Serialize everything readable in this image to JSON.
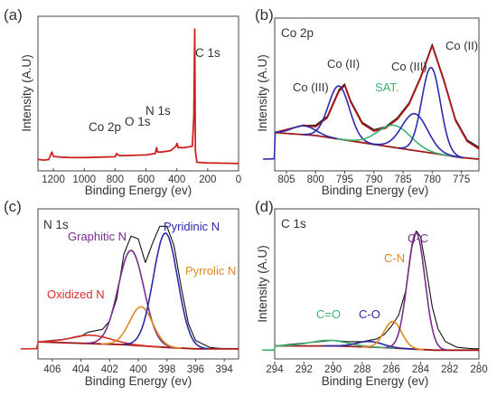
{
  "colors": {
    "data": "#111111",
    "fit": "#b01818",
    "background": "#a01a1a",
    "survey": "#cc2222",
    "co3": "#2b2bb0",
    "sat": "#3cb371",
    "nOx": "#d8312c",
    "graphitic": "#7b2d8e",
    "pyridinic": "#2a2aa8",
    "pyrrolic": "#e08a1e",
    "cc": "#7b2d8e",
    "co": "#2a2aa8",
    "cn": "#e08a1e",
    "ceo": "#3cb371"
  },
  "chart_data": [
    {
      "panel": "(a)",
      "type": "line",
      "title": "",
      "xlabel": "Binding Energy (ev)",
      "ylabel": "Intensity (A.U)",
      "xlim": [
        1300,
        0
      ],
      "ylim": [
        0,
        100
      ],
      "xticks": [
        "1200",
        "1000",
        "800",
        "600",
        "400",
        "200",
        "0"
      ],
      "annotations": [
        {
          "label": "C 1s",
          "x": 284
        },
        {
          "label": "N 1s",
          "x": 398
        },
        {
          "label": "O 1s",
          "x": 531
        },
        {
          "label": "Co 2p",
          "x": 780
        }
      ],
      "series": [
        {
          "x": [
            1300,
            1260,
            1230,
            1210,
            1200,
            1150,
            1100,
            1000,
            900,
            800,
            790,
            780,
            770,
            700,
            600,
            540,
            531,
            525,
            500,
            440,
            405,
            398,
            392,
            350,
            300,
            290,
            284,
            280,
            270,
            200,
            100,
            0
          ],
          "y": [
            6,
            5.5,
            6,
            11,
            8,
            7.5,
            7.3,
            7.2,
            7.5,
            7.8,
            10,
            9,
            8.5,
            8.7,
            9,
            10,
            14,
            11,
            11,
            12,
            15,
            17,
            14,
            14,
            15,
            35,
            95,
            12,
            4,
            3.6,
            3.4,
            3.2
          ]
        }
      ]
    },
    {
      "panel": "(b)",
      "type": "line",
      "title": "Co 2p",
      "xlabel": "Binding Energy (ev)",
      "ylabel": "Intensity (A.U)",
      "xlim": [
        807,
        772
      ],
      "ylim": [
        0,
        100
      ],
      "xticks": [
        "805",
        "800",
        "795",
        "790",
        "785",
        "780",
        "775"
      ],
      "annotations": [
        {
          "label": "Co (III)",
          "x": 802
        },
        {
          "label": "Co (II)",
          "x": 796
        },
        {
          "label": "SAT.",
          "x": 786
        },
        {
          "label": "Co (III)",
          "x": 783
        },
        {
          "label": "Co (II)",
          "x": 780
        }
      ],
      "series": [
        {
          "role": "raw",
          "x": [
            807,
            805,
            803,
            802,
            800,
            798,
            796,
            795,
            794,
            792,
            790,
            788,
            786,
            784,
            782,
            780,
            778,
            776,
            774,
            772
          ],
          "y": [
            26,
            28,
            30,
            31,
            31,
            37,
            55,
            59,
            48,
            33,
            28,
            30,
            36,
            46,
            64,
            86,
            62,
            35,
            21,
            16
          ]
        },
        {
          "role": "envelope",
          "x": [
            807,
            805,
            803,
            802,
            800,
            798,
            796,
            795,
            794,
            792,
            790,
            788,
            786,
            784,
            782,
            780,
            778,
            776,
            774,
            772
          ],
          "y": [
            26,
            28,
            30,
            31,
            30,
            36,
            54,
            58,
            47,
            32,
            27,
            29,
            35,
            45,
            63,
            85,
            61,
            34,
            20,
            15
          ]
        },
        {
          "role": "background",
          "x": [
            807,
            800,
            795,
            790,
            785,
            780,
            775,
            772
          ],
          "y": [
            26,
            24,
            21,
            18,
            15,
            12,
            9,
            8
          ]
        },
        {
          "role": "peak",
          "name": "Co (III)",
          "center": 802,
          "height": 6,
          "width": 2,
          "color": "co3"
        },
        {
          "role": "peak",
          "name": "Co (II)",
          "center": 796,
          "height": 36,
          "width": 1.8,
          "color": "co3"
        },
        {
          "role": "peak",
          "name": "SAT.",
          "center": 786.5,
          "height": 15,
          "width": 2.8,
          "color": "sat"
        },
        {
          "role": "peak",
          "name": "Co (III)",
          "center": 783,
          "height": 25,
          "width": 2.2,
          "color": "co3"
        },
        {
          "role": "peak",
          "name": "Co (II)",
          "center": 780.2,
          "height": 58,
          "width": 1.6,
          "color": "co3"
        }
      ]
    },
    {
      "panel": "(c)",
      "type": "line",
      "title": "N 1s",
      "xlabel": "Binding Energy (ev)",
      "ylabel": "",
      "xlim": [
        407,
        393
      ],
      "ylim": [
        0,
        100
      ],
      "xticks": [
        "406",
        "404",
        "402",
        "400",
        "398",
        "396",
        "394"
      ],
      "annotations": [
        {
          "label": "Oxidized N",
          "x": 403.5
        },
        {
          "label": "Graphitic N",
          "x": 400.4
        },
        {
          "label": "Pyridinic N",
          "x": 398.1
        },
        {
          "label": "Pyrrolic N",
          "x": 399.8
        }
      ],
      "series": [
        {
          "role": "raw",
          "x": [
            407,
            406,
            405,
            404,
            403.5,
            403,
            402.5,
            402,
            401.5,
            401,
            400.5,
            400,
            399.5,
            399,
            398.5,
            398,
            397.5,
            397,
            396.5,
            396,
            395,
            394,
            393
          ],
          "y": [
            9,
            10,
            11,
            13,
            16,
            17,
            18,
            24,
            40,
            72,
            85,
            83,
            66,
            80,
            92,
            92,
            78,
            48,
            22,
            10,
            5,
            4,
            4
          ]
        },
        {
          "role": "background",
          "x": [
            407,
            404,
            401,
            398,
            396,
            393
          ],
          "y": [
            9,
            8,
            7,
            5,
            4,
            4
          ]
        },
        {
          "role": "peak",
          "name": "Oxidized N",
          "center": 403.3,
          "height": 6,
          "width": 1.4,
          "color": "nOx"
        },
        {
          "role": "peak",
          "name": "Graphitic N",
          "center": 400.5,
          "height": 68,
          "width": 0.9,
          "color": "graphitic"
        },
        {
          "role": "peak",
          "name": "Pyrrolic N",
          "center": 399.8,
          "height": 28,
          "width": 0.8,
          "color": "pyrrolic"
        },
        {
          "role": "peak",
          "name": "Pyridinic N",
          "center": 398.1,
          "height": 82,
          "width": 0.85,
          "color": "pyridinic"
        }
      ]
    },
    {
      "panel": "(d)",
      "type": "line",
      "title": "C 1s",
      "xlabel": "Binding Energy (ev)",
      "ylabel": "Intensity (A.U)",
      "xlim": [
        294,
        280
      ],
      "ylim": [
        0,
        100
      ],
      "xticks": [
        "294",
        "292",
        "290",
        "288",
        "286",
        "284",
        "282",
        "280"
      ],
      "annotations": [
        {
          "label": "C-C",
          "x": 284.3
        },
        {
          "label": "C-N",
          "x": 285.9
        },
        {
          "label": "C-O",
          "x": 287.3
        },
        {
          "label": "C=O",
          "x": 290.2
        }
      ],
      "series": [
        {
          "role": "raw",
          "x": [
            294,
            293,
            292,
            291,
            290,
            289,
            288,
            287,
            286.5,
            286,
            285.5,
            285,
            284.6,
            284.3,
            284,
            283.6,
            283.2,
            282.8,
            282.3,
            281.5,
            280.5,
            280
          ],
          "y": [
            8,
            9,
            10,
            11,
            12,
            11,
            11,
            13,
            16,
            22,
            30,
            48,
            78,
            90,
            86,
            62,
            36,
            20,
            11,
            7,
            6,
            6
          ]
        },
        {
          "role": "background",
          "x": [
            294,
            290,
            287,
            285,
            283,
            281,
            280
          ],
          "y": [
            8,
            8,
            7,
            6,
            5,
            5,
            5
          ]
        },
        {
          "role": "peak",
          "name": "C=O",
          "center": 290.3,
          "height": 4,
          "width": 1.3,
          "color": "ceo"
        },
        {
          "role": "peak",
          "name": "C-O",
          "center": 287.5,
          "height": 4,
          "width": 0.9,
          "color": "co"
        },
        {
          "role": "peak",
          "name": "C-N",
          "center": 285.9,
          "height": 19,
          "width": 0.6,
          "color": "cn"
        },
        {
          "role": "peak",
          "name": "C-C",
          "center": 284.3,
          "height": 83,
          "width": 0.6,
          "color": "cc"
        }
      ]
    }
  ]
}
